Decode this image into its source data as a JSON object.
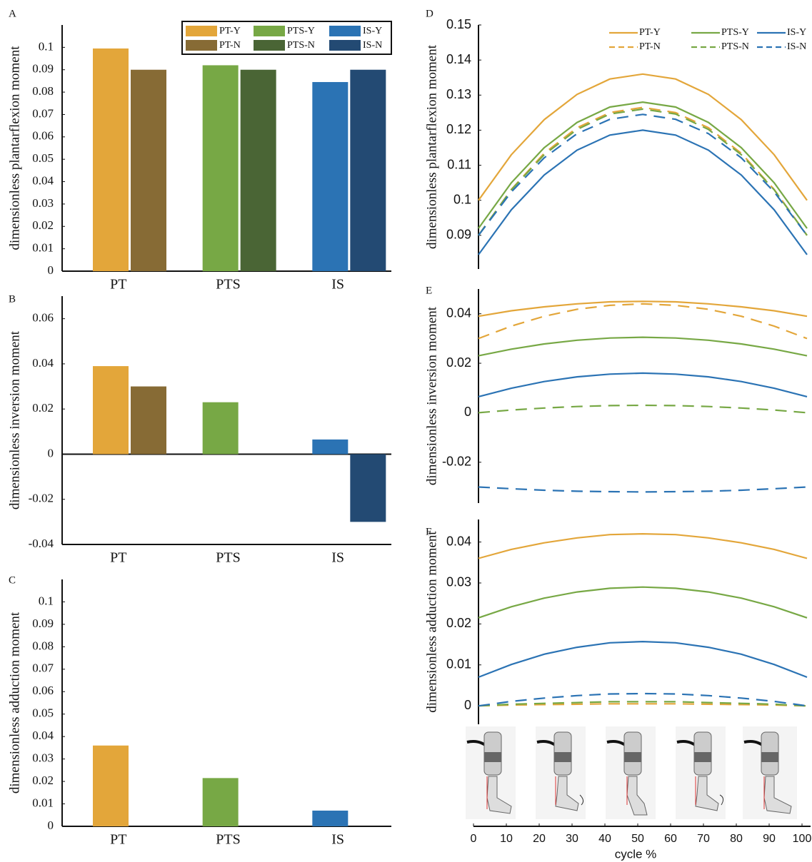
{
  "chart_data": [
    {
      "type": "bar",
      "panel": "A",
      "ylabel": "dimensionless plantarflexion moment",
      "categories": [
        "PT",
        "PTS",
        "IS"
      ],
      "series": [
        {
          "name": "PT-Y",
          "color": "#e3a63a",
          "values": [
            0.0995,
            null,
            null
          ]
        },
        {
          "name": "PT-N",
          "color": "#876b35",
          "values": [
            0.09,
            null,
            null
          ]
        },
        {
          "name": "PTS-Y",
          "color": "#77a845",
          "values": [
            null,
            0.092,
            null
          ]
        },
        {
          "name": "PTS-N",
          "color": "#4a6535",
          "values": [
            null,
            0.09,
            null
          ]
        },
        {
          "name": "IS-Y",
          "color": "#2b73b4",
          "values": [
            null,
            null,
            0.0845
          ]
        },
        {
          "name": "IS-N",
          "color": "#234a73",
          "values": [
            null,
            null,
            0.09
          ]
        }
      ],
      "ylim": [
        0,
        0.11
      ],
      "yticks": [
        0,
        0.01,
        0.02,
        0.03,
        0.04,
        0.05,
        0.06,
        0.07,
        0.08,
        0.09,
        0.1
      ],
      "legend": "upper right"
    },
    {
      "type": "bar",
      "panel": "B",
      "ylabel": "dimensionless inversion moment",
      "categories": [
        "PT",
        "PTS",
        "IS"
      ],
      "series": [
        {
          "color": "#e3a63a",
          "values": [
            0.039,
            null,
            null
          ]
        },
        {
          "color": "#876b35",
          "values": [
            0.03,
            null,
            null
          ]
        },
        {
          "color": "#77a845",
          "values": [
            null,
            0.023,
            null
          ]
        },
        {
          "color": "#4a6535",
          "values": [
            null,
            0,
            null
          ]
        },
        {
          "color": "#2b73b4",
          "values": [
            null,
            null,
            0.0065
          ]
        },
        {
          "color": "#234a73",
          "values": [
            null,
            null,
            -0.03
          ]
        }
      ],
      "ylim": [
        -0.04,
        0.07
      ],
      "yticks": [
        -0.04,
        -0.02,
        0,
        0.02,
        0.04,
        0.06
      ]
    },
    {
      "type": "bar",
      "panel": "C",
      "ylabel": "dimensionless adduction moment",
      "categories": [
        "PT",
        "PTS",
        "IS"
      ],
      "series": [
        {
          "color": "#e3a63a",
          "values": [
            0.036,
            null,
            null
          ]
        },
        {
          "color": "#876b35",
          "values": [
            0,
            null,
            null
          ]
        },
        {
          "color": "#77a845",
          "values": [
            null,
            0.0215,
            null
          ]
        },
        {
          "color": "#4a6535",
          "values": [
            null,
            0,
            null
          ]
        },
        {
          "color": "#2b73b4",
          "values": [
            null,
            null,
            0.007
          ]
        },
        {
          "color": "#234a73",
          "values": [
            null,
            null,
            0
          ]
        }
      ],
      "ylim": [
        0,
        0.11
      ],
      "yticks": [
        0,
        0.01,
        0.02,
        0.03,
        0.04,
        0.05,
        0.06,
        0.07,
        0.08,
        0.09,
        0.1
      ]
    },
    {
      "type": "line",
      "panel": "D",
      "ylabel": "dimensionless plantarflexion moment",
      "x": [
        0,
        10,
        20,
        30,
        40,
        50,
        60,
        70,
        80,
        90,
        100
      ],
      "xlim": [
        0,
        100
      ],
      "series": [
        {
          "name": "PT-Y",
          "color": "#e3a63a",
          "line_style": "solid",
          "values": [
            0.1,
            0.113,
            0.123,
            0.1302,
            0.1346,
            0.136,
            0.1346,
            0.1302,
            0.123,
            0.113,
            0.1
          ]
        },
        {
          "name": "PT-N",
          "color": "#e3a63a",
          "line_style": "dashed",
          "values": [
            0.09,
            0.1031,
            0.1134,
            0.1207,
            0.125,
            0.1265,
            0.125,
            0.1207,
            0.1134,
            0.1031,
            0.09
          ]
        },
        {
          "name": "PTS-Y",
          "color": "#77a845",
          "line_style": "solid",
          "values": [
            0.092,
            0.105,
            0.115,
            0.1222,
            0.1266,
            0.128,
            0.1266,
            0.1222,
            0.115,
            0.105,
            0.092
          ]
        },
        {
          "name": "PTS-N",
          "color": "#77a845",
          "line_style": "dashed",
          "values": [
            0.09,
            0.103,
            0.113,
            0.1202,
            0.1246,
            0.126,
            0.1246,
            0.1202,
            0.113,
            0.103,
            0.09
          ]
        },
        {
          "name": "IS-Y",
          "color": "#2b73b4",
          "line_style": "solid",
          "values": [
            0.0845,
            0.0973,
            0.1072,
            0.1143,
            0.1186,
            0.12,
            0.1186,
            0.1143,
            0.1072,
            0.0973,
            0.0845
          ]
        },
        {
          "name": "IS-N",
          "color": "#2b73b4",
          "line_style": "dashed",
          "values": [
            0.09,
            0.1024,
            0.1121,
            0.119,
            0.1231,
            0.1245,
            0.1231,
            0.119,
            0.1121,
            0.1024,
            0.09
          ]
        }
      ],
      "ylim": [
        0.0804,
        0.15
      ],
      "yticks": [
        0.09,
        0.1,
        0.11,
        0.12,
        0.13,
        0.14,
        0.15
      ],
      "legend": "upper right"
    },
    {
      "type": "line",
      "panel": "E",
      "ylabel": "dimensionless inversion moment",
      "x": [
        0,
        10,
        20,
        30,
        40,
        50,
        60,
        70,
        80,
        90,
        100
      ],
      "xlim": [
        0,
        100
      ],
      "series": [
        {
          "color": "#e3a63a",
          "line_style": "solid",
          "values": [
            0.039,
            0.0412,
            0.0428,
            0.044,
            0.0448,
            0.045,
            0.0448,
            0.044,
            0.0428,
            0.0412,
            0.039
          ]
        },
        {
          "color": "#e3a63a",
          "line_style": "dashed",
          "values": [
            0.03,
            0.035,
            0.039,
            0.0418,
            0.0434,
            0.044,
            0.0434,
            0.0418,
            0.039,
            0.035,
            0.03
          ]
        },
        {
          "color": "#77a845",
          "line_style": "solid",
          "values": [
            0.023,
            0.0257,
            0.0278,
            0.0293,
            0.0302,
            0.0305,
            0.0302,
            0.0293,
            0.0278,
            0.0257,
            0.023
          ]
        },
        {
          "color": "#77a845",
          "line_style": "dashed",
          "values": [
            0,
            0.0011,
            0.0019,
            0.0025,
            0.0029,
            0.003,
            0.0029,
            0.0025,
            0.0019,
            0.0011,
            0
          ]
        },
        {
          "color": "#2b73b4",
          "line_style": "solid",
          "values": [
            0.0065,
            0.0099,
            0.0126,
            0.0145,
            0.0156,
            0.016,
            0.0156,
            0.0145,
            0.0126,
            0.0099,
            0.0065
          ]
        },
        {
          "color": "#2b73b4",
          "line_style": "dashed",
          "values": [
            -0.03,
            -0.0307,
            -0.0313,
            -0.0317,
            -0.0319,
            -0.032,
            -0.0319,
            -0.0317,
            -0.0313,
            -0.0307,
            -0.03
          ]
        }
      ],
      "ylim": [
        -0.0365,
        0.05
      ],
      "yticks": [
        -0.02,
        0,
        0.02,
        0.04
      ]
    },
    {
      "type": "line",
      "panel": "F",
      "ylabel": "dimensionless adduction moment",
      "xlabel": "cycle %",
      "x": [
        0,
        10,
        20,
        30,
        40,
        50,
        60,
        70,
        80,
        90,
        100
      ],
      "xlim": [
        0,
        100
      ],
      "xticks": [
        0,
        10,
        20,
        30,
        40,
        50,
        60,
        70,
        80,
        90,
        100
      ],
      "series": [
        {
          "color": "#e3a63a",
          "line_style": "solid",
          "values": [
            0.036,
            0.0382,
            0.0398,
            0.041,
            0.0418,
            0.042,
            0.0418,
            0.041,
            0.0398,
            0.0382,
            0.036
          ]
        },
        {
          "color": "#e3a63a",
          "line_style": "dashed",
          "values": [
            0,
            0.0002,
            0.0003,
            0.0004,
            0.0005,
            0.0005,
            0.0005,
            0.0004,
            0.0003,
            0.0002,
            0
          ]
        },
        {
          "color": "#77a845",
          "line_style": "solid",
          "values": [
            0.0215,
            0.0242,
            0.0263,
            0.0278,
            0.0287,
            0.029,
            0.0287,
            0.0278,
            0.0263,
            0.0242,
            0.0215
          ]
        },
        {
          "color": "#77a845",
          "line_style": "dashed",
          "values": [
            0,
            0.0004,
            0.0006,
            0.0008,
            0.001,
            0.001,
            0.001,
            0.0008,
            0.0006,
            0.0004,
            0
          ]
        },
        {
          "color": "#2b73b4",
          "line_style": "solid",
          "values": [
            0.007,
            0.0101,
            0.0126,
            0.0143,
            0.0154,
            0.0157,
            0.0154,
            0.0143,
            0.0126,
            0.0101,
            0.007
          ]
        },
        {
          "color": "#2b73b4",
          "line_style": "dashed",
          "values": [
            0,
            0.0011,
            0.0019,
            0.0025,
            0.0029,
            0.003,
            0.0029,
            0.0025,
            0.0019,
            0.0011,
            0
          ]
        }
      ],
      "ylim": [
        -0.0045,
        0.0455
      ],
      "yticks": [
        0,
        0.01,
        0.02,
        0.03,
        0.04
      ]
    }
  ]
}
